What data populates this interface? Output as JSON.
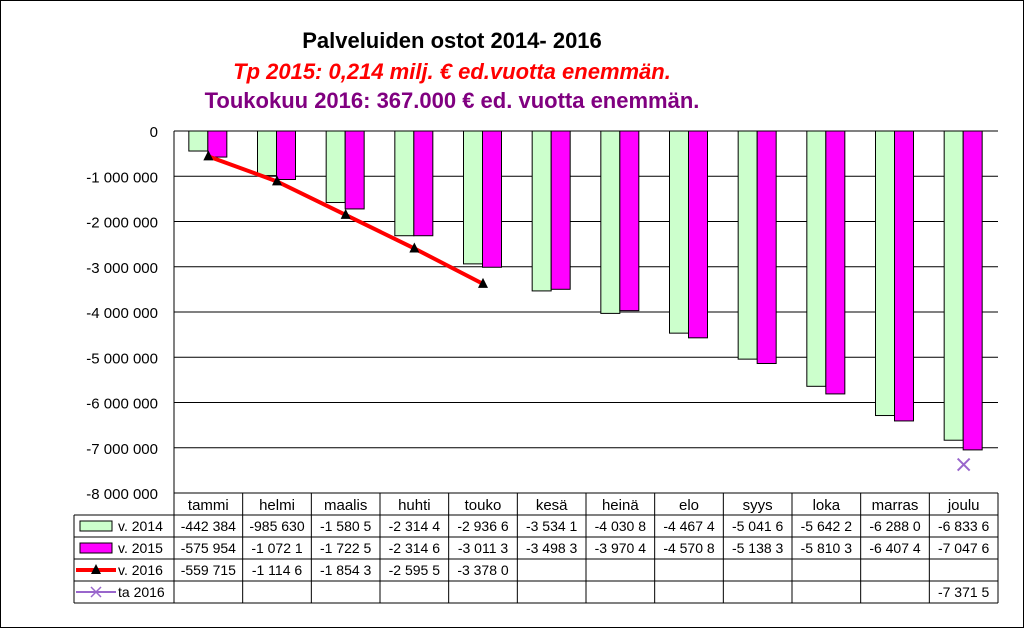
{
  "title": "Palveluiden ostot 2014- 2016",
  "subtitle1": "Tp 2015: 0,214 milj. € ed.vuotta enemmän.",
  "subtitle2": "Toukokuu 2016: 367.000 € ed. vuotta enemmän.",
  "colors": {
    "v2014": "#ccffcc",
    "v2015": "#ff00ff",
    "v2016": "#ff0000",
    "ta2016": "#9966cc",
    "subtitle1": "#ff0000",
    "subtitle2": "#800080"
  },
  "chart_data": {
    "type": "bar",
    "title": "Palveluiden ostot 2014- 2016",
    "categories": [
      "tammi",
      "helmi",
      "maalis",
      "huhti",
      "touko",
      "kesä",
      "heinä",
      "elo",
      "syys",
      "loka",
      "marras",
      "joulu"
    ],
    "ylim": [
      -8000000,
      0
    ],
    "yticks": [
      0,
      -1000000,
      -2000000,
      -3000000,
      -4000000,
      -5000000,
      -6000000,
      -7000000,
      -8000000
    ],
    "ytick_labels": [
      "0",
      "-1 000 000",
      "-2 000 000",
      "-3 000 000",
      "-4 000 000",
      "-5 000 000",
      "-6 000 000",
      "-7 000 000",
      "-8 000 000"
    ],
    "grid": true,
    "series": [
      {
        "name": "v. 2014",
        "type": "bar",
        "values": [
          -442384,
          -985630,
          -1580500,
          -2314400,
          -2936600,
          -3534100,
          -4030800,
          -4467400,
          -5041600,
          -5642200,
          -6288000,
          -6833600
        ],
        "labels": [
          "-442 384",
          "-985 630",
          "-1 580 5",
          "-2 314 4",
          "-2 936 6",
          "-3 534 1",
          "-4 030 8",
          "-4 467 4",
          "-5 041 6",
          "-5 642 2",
          "-6 288 0",
          "-6 833 6"
        ]
      },
      {
        "name": "v. 2015",
        "type": "bar",
        "values": [
          -575954,
          -1072100,
          -1722500,
          -2314600,
          -3011300,
          -3498300,
          -3970400,
          -4570800,
          -5138300,
          -5810300,
          -6407400,
          -7047600
        ],
        "labels": [
          "-575 954",
          "-1 072 1",
          "-1 722 5",
          "-2 314 6",
          "-3 011 3",
          "-3 498 3",
          "-3 970 4",
          "-4 570 8",
          "-5 138 3",
          "-5 810 3",
          "-6 407 4",
          "-7 047 6"
        ]
      },
      {
        "name": "v. 2016",
        "type": "line",
        "values": [
          -559715,
          -1114600,
          -1854300,
          -2595500,
          -3378000,
          null,
          null,
          null,
          null,
          null,
          null,
          null
        ],
        "labels": [
          "-559 715",
          "-1 114 6",
          "-1 854 3",
          "-2 595 5",
          "-3 378 0",
          "",
          "",
          "",
          "",
          "",
          "",
          ""
        ]
      },
      {
        "name": "ta 2016",
        "type": "marker",
        "values": [
          null,
          null,
          null,
          null,
          null,
          null,
          null,
          null,
          null,
          null,
          null,
          -7371500
        ],
        "labels": [
          "",
          "",
          "",
          "",
          "",
          "",
          "",
          "",
          "",
          "",
          "",
          "-7 371 5"
        ]
      }
    ]
  }
}
